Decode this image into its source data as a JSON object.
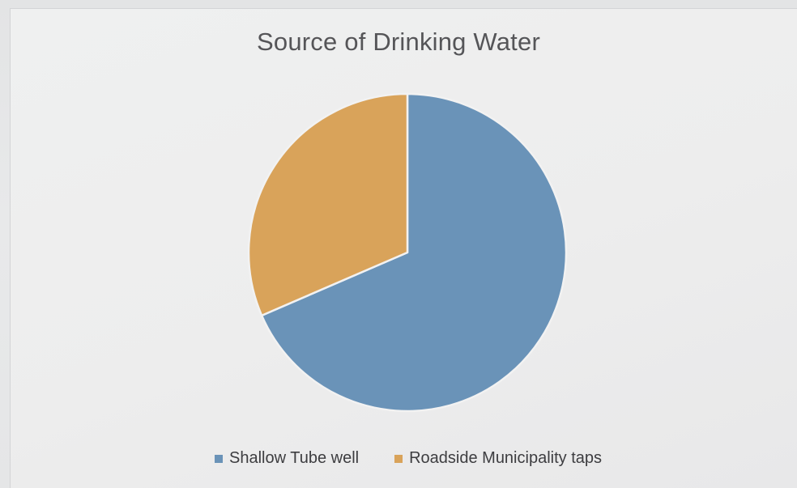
{
  "chart_data": {
    "type": "pie",
    "title": "Source of Drinking Water",
    "categories": [
      "Shallow Tube well",
      "Roadside Municipality taps"
    ],
    "values": [
      68.5,
      31.5
    ],
    "colors": [
      "#6a93b8",
      "#d9a35a"
    ],
    "legend_position": "bottom",
    "start_angle": "12 o'clock, clockwise"
  }
}
